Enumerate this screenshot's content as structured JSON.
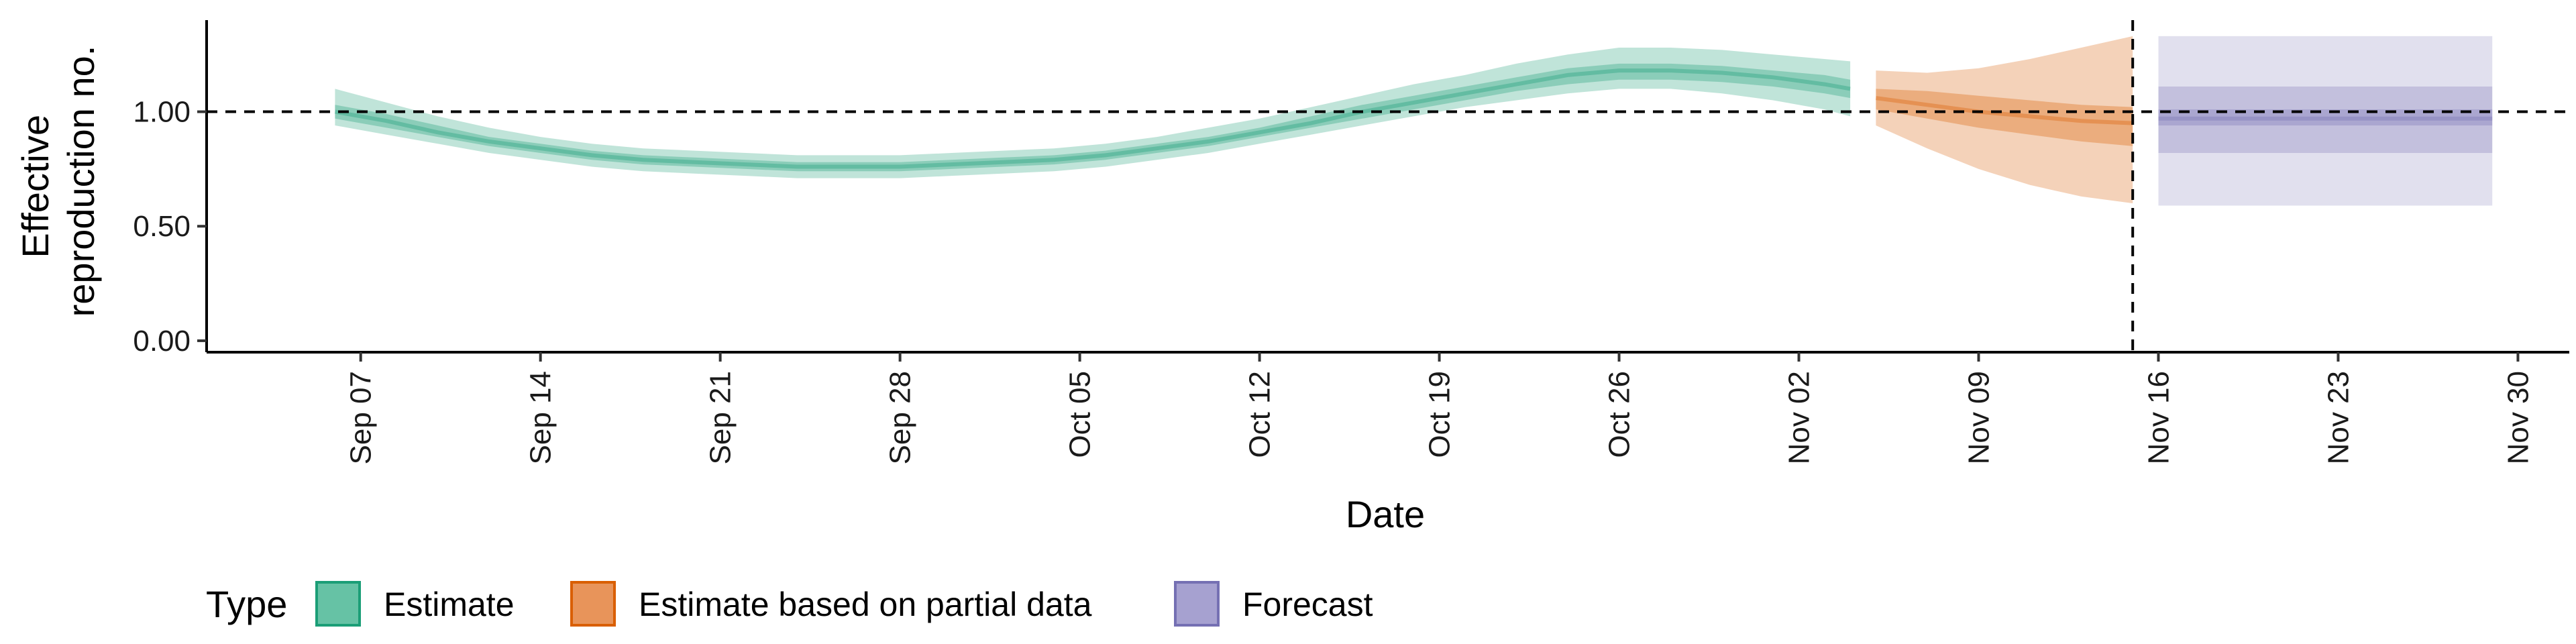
{
  "chart_data": {
    "type": "area",
    "xlabel": "Date",
    "ylabel_lines": [
      "Effective",
      "reproduction no."
    ],
    "x_ticks": [
      "Sep 07",
      "Sep 14",
      "Sep 21",
      "Sep 28",
      "Oct 05",
      "Oct 12",
      "Oct 19",
      "Oct 26",
      "Nov 02",
      "Nov 09",
      "Nov 16",
      "Nov 23",
      "Nov 30"
    ],
    "x_tick_dates": [
      "2020-09-07",
      "2020-09-14",
      "2020-09-21",
      "2020-09-28",
      "2020-10-05",
      "2020-10-12",
      "2020-10-19",
      "2020-10-26",
      "2020-11-02",
      "2020-11-09",
      "2020-11-16",
      "2020-11-23",
      "2020-11-30"
    ],
    "y_ticks": [
      "0.00",
      "0.50",
      "1.00"
    ],
    "y_tick_values": [
      0,
      0.5,
      1.0
    ],
    "xlim": [
      "2020-09-01",
      "2020-12-02"
    ],
    "ylim": [
      -0.05,
      1.4
    ],
    "hline_y": 1.0,
    "vline_date": "2020-11-15",
    "grid": false,
    "legend": {
      "title": "Type",
      "position": "bottom-left",
      "items": [
        {
          "label": "Estimate",
          "fill": "#66C2A5",
          "stroke": "#1B9E77"
        },
        {
          "label": "Estimate based on partial data",
          "fill": "#E8945A",
          "stroke": "#D95F02"
        },
        {
          "label": "Forecast",
          "fill": "#A6A1D0",
          "stroke": "#7570B3"
        }
      ]
    },
    "series": [
      {
        "type_label": "Estimate",
        "color": "#1B9E77",
        "x": [
          "2020-09-06",
          "2020-09-08",
          "2020-09-10",
          "2020-09-12",
          "2020-09-14",
          "2020-09-16",
          "2020-09-18",
          "2020-09-20",
          "2020-09-22",
          "2020-09-24",
          "2020-09-26",
          "2020-09-28",
          "2020-09-30",
          "2020-10-02",
          "2020-10-04",
          "2020-10-06",
          "2020-10-08",
          "2020-10-10",
          "2020-10-12",
          "2020-10-14",
          "2020-10-16",
          "2020-10-18",
          "2020-10-20",
          "2020-10-22",
          "2020-10-24",
          "2020-10-26",
          "2020-10-28",
          "2020-10-30",
          "2020-11-01",
          "2020-11-03",
          "2020-11-04"
        ],
        "median": [
          1.0,
          0.96,
          0.91,
          0.87,
          0.84,
          0.81,
          0.79,
          0.78,
          0.77,
          0.76,
          0.76,
          0.76,
          0.77,
          0.78,
          0.79,
          0.81,
          0.84,
          0.87,
          0.91,
          0.95,
          1.0,
          1.04,
          1.08,
          1.12,
          1.16,
          1.18,
          1.18,
          1.17,
          1.15,
          1.12,
          1.1
        ],
        "lower_50": [
          0.97,
          0.93,
          0.89,
          0.85,
          0.82,
          0.79,
          0.77,
          0.76,
          0.75,
          0.74,
          0.74,
          0.74,
          0.75,
          0.76,
          0.77,
          0.79,
          0.82,
          0.85,
          0.89,
          0.93,
          0.97,
          1.01,
          1.05,
          1.09,
          1.12,
          1.14,
          1.14,
          1.13,
          1.11,
          1.08,
          1.06
        ],
        "upper_50": [
          1.03,
          0.99,
          0.94,
          0.89,
          0.86,
          0.83,
          0.81,
          0.8,
          0.79,
          0.78,
          0.78,
          0.78,
          0.79,
          0.8,
          0.81,
          0.83,
          0.86,
          0.89,
          0.93,
          0.98,
          1.03,
          1.07,
          1.11,
          1.15,
          1.19,
          1.21,
          1.21,
          1.2,
          1.18,
          1.16,
          1.14
        ],
        "lower_90": [
          0.94,
          0.9,
          0.86,
          0.82,
          0.79,
          0.76,
          0.74,
          0.73,
          0.72,
          0.71,
          0.71,
          0.71,
          0.72,
          0.73,
          0.74,
          0.76,
          0.79,
          0.82,
          0.86,
          0.9,
          0.94,
          0.98,
          1.02,
          1.05,
          1.08,
          1.1,
          1.1,
          1.08,
          1.05,
          1.01,
          0.98
        ],
        "upper_90": [
          1.1,
          1.04,
          0.98,
          0.93,
          0.89,
          0.86,
          0.84,
          0.83,
          0.82,
          0.81,
          0.81,
          0.81,
          0.82,
          0.83,
          0.84,
          0.86,
          0.89,
          0.93,
          0.97,
          1.02,
          1.07,
          1.12,
          1.16,
          1.21,
          1.25,
          1.28,
          1.28,
          1.27,
          1.25,
          1.23,
          1.22
        ]
      },
      {
        "type_label": "Estimate based on partial data",
        "color": "#D95F02",
        "x": [
          "2020-11-05",
          "2020-11-07",
          "2020-11-09",
          "2020-11-11",
          "2020-11-13",
          "2020-11-15"
        ],
        "median": [
          1.06,
          1.03,
          1.0,
          0.98,
          0.96,
          0.95
        ],
        "lower_50": [
          1.01,
          0.97,
          0.93,
          0.9,
          0.87,
          0.85
        ],
        "upper_50": [
          1.1,
          1.09,
          1.07,
          1.05,
          1.03,
          1.02
        ],
        "lower_90": [
          0.94,
          0.84,
          0.75,
          0.68,
          0.63,
          0.6
        ],
        "upper_90": [
          1.18,
          1.17,
          1.19,
          1.23,
          1.28,
          1.33
        ]
      },
      {
        "type_label": "Forecast",
        "color": "#7570B3",
        "x": [
          "2020-11-16",
          "2020-11-29"
        ],
        "median": [
          0.97,
          0.97
        ],
        "lower_50": [
          0.94,
          0.94
        ],
        "upper_50": [
          1.01,
          1.01
        ],
        "lower_90": [
          0.82,
          0.82
        ],
        "upper_90": [
          1.11,
          1.11
        ],
        "lower_outer": [
          0.59,
          0.59
        ],
        "upper_outer": [
          1.33,
          1.33
        ]
      }
    ]
  }
}
